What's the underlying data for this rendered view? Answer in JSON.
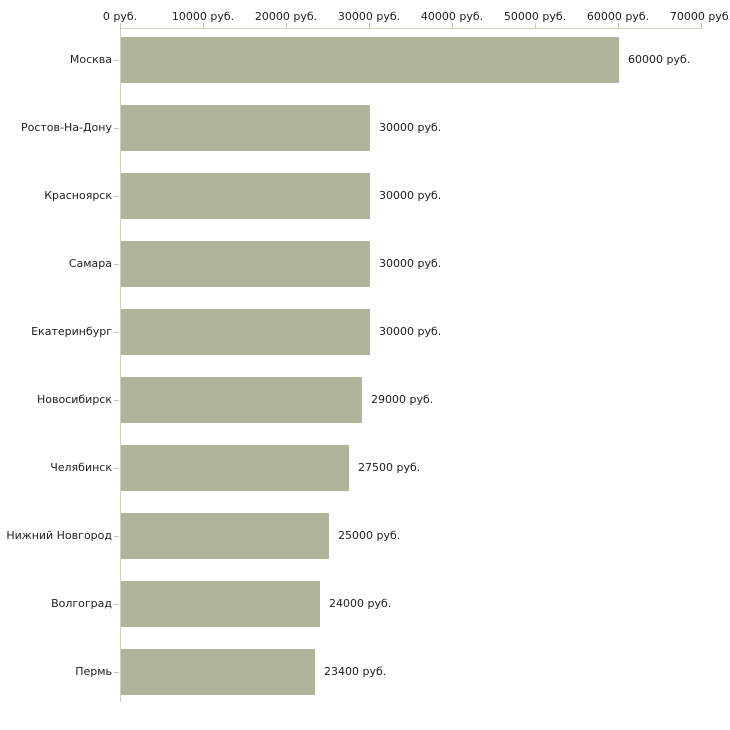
{
  "chart_data": {
    "type": "bar",
    "orientation": "horizontal",
    "title": "",
    "xlabel": "",
    "ylabel": "",
    "xlim": [
      0,
      70000
    ],
    "grid": false,
    "legend": "none",
    "x_tick_values": [
      0,
      10000,
      20000,
      30000,
      40000,
      50000,
      60000,
      70000
    ],
    "x_tick_labels": [
      "0 руб.",
      "10000 руб.",
      "20000 руб.",
      "30000 руб.",
      "40000 руб.",
      "50000 руб.",
      "60000 руб.",
      "70000 руб."
    ],
    "categories": [
      "Москва",
      "Ростов-На-Дону",
      "Красноярск",
      "Самара",
      "Екатеринбург",
      "Новосибирск",
      "Челябинск",
      "Нижний Новгород",
      "Волгоград",
      "Пермь"
    ],
    "values": [
      60000,
      30000,
      30000,
      30000,
      30000,
      29000,
      27500,
      25000,
      24000,
      23400
    ],
    "value_labels": [
      "60000 руб.",
      "30000 руб.",
      "30000 руб.",
      "30000 руб.",
      "30000 руб.",
      "29000 руб.",
      "27500 руб.",
      "25000 руб.",
      "24000 руб.",
      "23400 руб."
    ],
    "colors": {
      "bar": "#afb49b",
      "axis_line": "#d4d1c2",
      "tick": "#ccc9b3",
      "text": "#1e1e1e",
      "background": "#ffffff"
    }
  }
}
